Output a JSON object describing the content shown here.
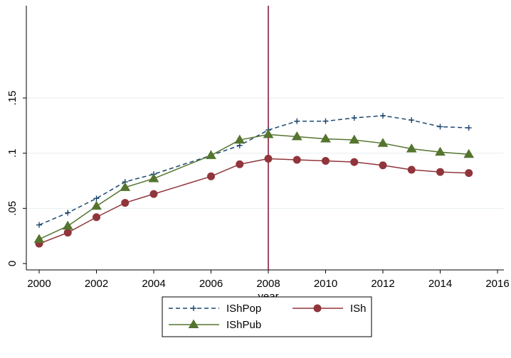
{
  "chart_data": {
    "type": "line",
    "title": "",
    "xlabel": "year",
    "ylabel": "",
    "xlim": [
      2000,
      2016
    ],
    "ylim": [
      0,
      0.15
    ],
    "xticks": [
      2000,
      2002,
      2004,
      2006,
      2008,
      2010,
      2012,
      2014,
      2016
    ],
    "xtick_labels": [
      "2000",
      "2002",
      "2004",
      "2006",
      "2008",
      "2010",
      "2012",
      "2014",
      "2016"
    ],
    "yticks": [
      0,
      0.05,
      0.1,
      0.15
    ],
    "ytick_labels": [
      "0",
      ".05",
      ".1",
      ".15"
    ],
    "grid": "horizontal",
    "reference_line": {
      "x": 2008,
      "color": "#8b1a3c"
    },
    "legend_position": "bottom",
    "series": [
      {
        "name": "IShPop",
        "color": "#1a476f",
        "line_style": "dashed",
        "marker": "plus",
        "x": [
          2000,
          2001,
          2002,
          2003,
          2004,
          2006,
          2007,
          2008,
          2009,
          2010,
          2011,
          2012,
          2013,
          2014,
          2015
        ],
        "y": [
          0.035,
          0.046,
          0.059,
          0.074,
          0.081,
          0.098,
          0.107,
          0.121,
          0.129,
          0.129,
          0.132,
          0.134,
          0.13,
          0.124,
          0.123
        ]
      },
      {
        "name": "ISh",
        "color": "#90353b",
        "line_style": "solid",
        "marker": "circle",
        "x": [
          2000,
          2001,
          2002,
          2003,
          2004,
          2006,
          2007,
          2008,
          2009,
          2010,
          2011,
          2012,
          2013,
          2014,
          2015
        ],
        "y": [
          0.018,
          0.028,
          0.042,
          0.055,
          0.063,
          0.079,
          0.09,
          0.095,
          0.094,
          0.093,
          0.092,
          0.089,
          0.085,
          0.083,
          0.082
        ]
      },
      {
        "name": "IShPub",
        "color": "#55752f",
        "line_style": "solid",
        "marker": "triangle",
        "x": [
          2000,
          2001,
          2002,
          2003,
          2004,
          2006,
          2007,
          2008,
          2009,
          2010,
          2011,
          2012,
          2013,
          2014,
          2015
        ],
        "y": [
          0.022,
          0.034,
          0.052,
          0.069,
          0.077,
          0.098,
          0.112,
          0.117,
          0.115,
          0.113,
          0.112,
          0.109,
          0.104,
          0.101,
          0.099
        ]
      }
    ]
  }
}
